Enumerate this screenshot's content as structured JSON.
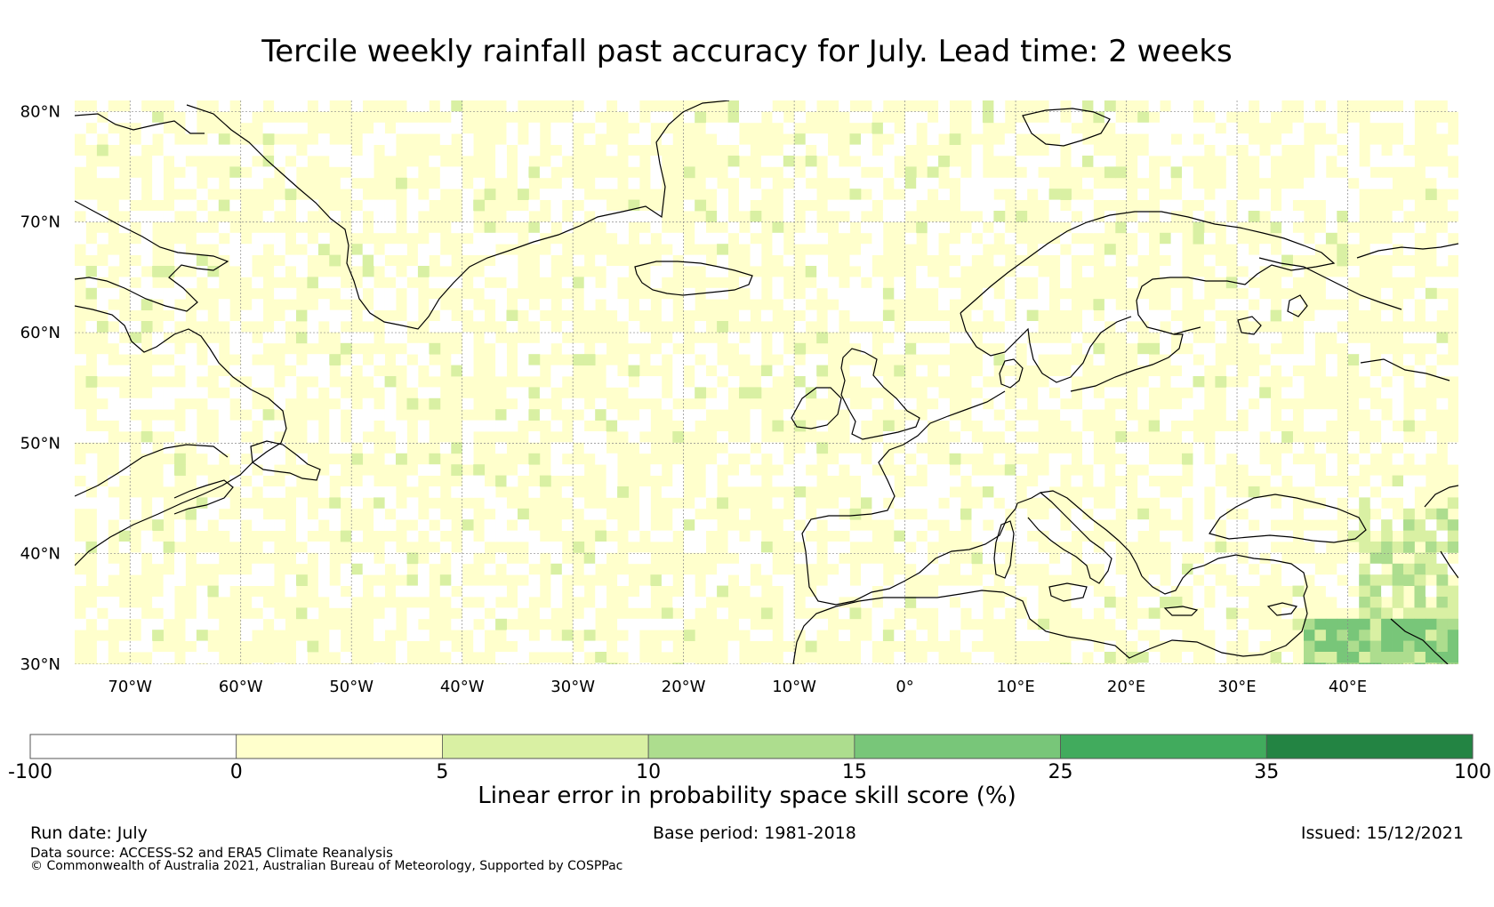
{
  "title": "Tercile weekly rainfall past accuracy for July. Lead time: 2 weeks",
  "map": {
    "lat_labels": [
      "80°N",
      "70°N",
      "60°N",
      "50°N",
      "40°N",
      "30°N"
    ],
    "lon_labels": [
      "70°W",
      "60°W",
      "50°W",
      "40°W",
      "30°W",
      "20°W",
      "10°W",
      "0°",
      "10°E",
      "20°E",
      "30°E",
      "40°E"
    ],
    "lat_values": [
      80,
      70,
      60,
      50,
      40,
      30
    ],
    "lon_values": [
      -70,
      -60,
      -50,
      -40,
      -30,
      -20,
      -10,
      0,
      10,
      20,
      30,
      40
    ],
    "lon_range": [
      -75,
      50
    ],
    "lat_range": [
      30,
      81
    ],
    "coastline_color": "#000000",
    "gridline_color": "#888888"
  },
  "colorbar": {
    "label": "Linear error in probability space skill score (%)",
    "ticks": [
      "-100",
      "0",
      "5",
      "10",
      "15",
      "25",
      "35",
      "100"
    ],
    "bins": [
      {
        "range": "-100 to 0",
        "color": "#ffffff"
      },
      {
        "range": "0 to 5",
        "color": "#ffffcc"
      },
      {
        "range": "5 to 10",
        "color": "#d9f0a3"
      },
      {
        "range": "10 to 15",
        "color": "#addd8e"
      },
      {
        "range": "15 to 25",
        "color": "#78c679"
      },
      {
        "range": "25 to 35",
        "color": "#41ab5d"
      },
      {
        "range": "35 to 100",
        "color": "#238443"
      }
    ]
  },
  "footer": {
    "run_date": "Run date: July",
    "base_period": "Base period: 1981-2018",
    "issued": "Issued: 15/12/2021",
    "data_source": "Data source: ACCESS-S2 and ERA5 Climate Reanalysis",
    "copyright": "© Commonwealth of Australia 2021, Australian Bureau of Meteorology, Supported by COSPPac"
  }
}
